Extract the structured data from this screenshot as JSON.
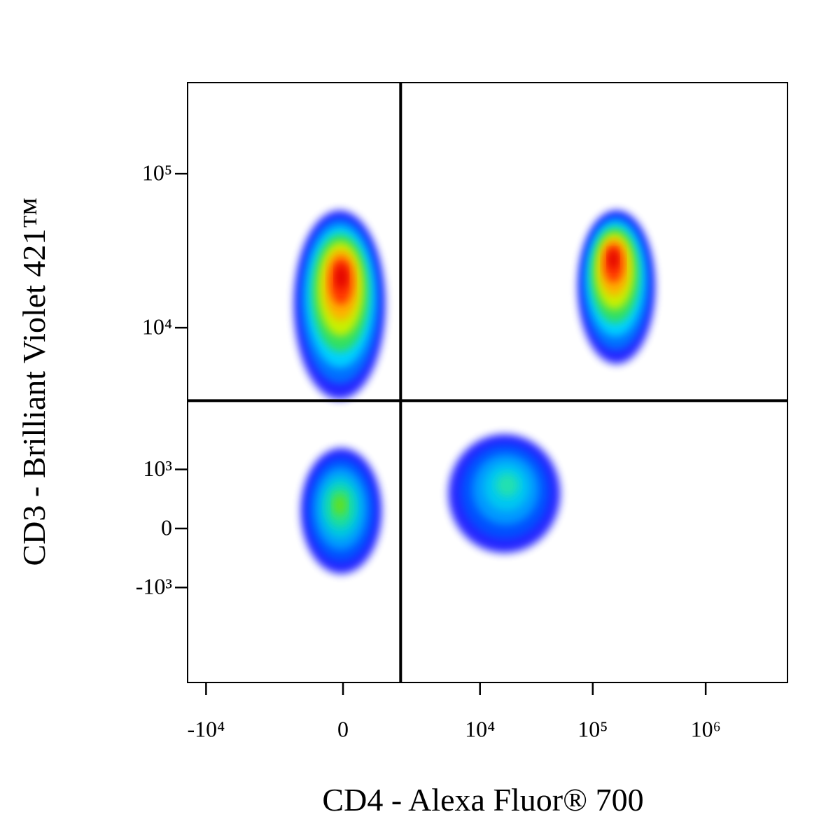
{
  "chart_data": {
    "type": "density",
    "x_label": "CD4 - Alexa Fluor® 700",
    "y_label": "CD3 - Brilliant Violet 421™",
    "xscale": "arcsinh",
    "x_cofactor": 1230,
    "yscale": "arcsinh",
    "y_cofactor": 1000,
    "xlim": [
      -14600,
      5300000
    ],
    "ylim": [
      -4940,
      390000
    ],
    "xticks": [
      {
        "value": -10000,
        "label": "-10⁴"
      },
      0,
      {
        "value": 10000,
        "label": "10⁴"
      },
      {
        "value": 100000,
        "label": "10⁵"
      },
      {
        "value": 1000000,
        "label": "10⁶"
      }
    ],
    "yticks": [
      {
        "value": -1000,
        "label": "-10³"
      },
      0,
      {
        "value": 1000,
        "label": "10³"
      },
      {
        "value": 10000,
        "label": "10⁴"
      },
      {
        "value": 100000,
        "label": "10⁵"
      }
    ],
    "gates": {
      "x": 1800,
      "y": 3300
    },
    "populations": [
      {
        "x": -35,
        "y": 22600,
        "xrange": [
          -1445,
          1190
        ],
        "yrange": [
          3370,
          57800
        ],
        "colors": [
          "#0000ff",
          "#0070ff",
          "#00d0ff",
          "#30e060",
          "#c8f000",
          "#ffb000",
          "#ff3000",
          "#e00000"
        ]
      },
      {
        "x": 150000,
        "y": 29500,
        "xrange": [
          73900,
          356000
        ],
        "yrange": [
          5800,
          57800
        ],
        "colors": [
          "#0000ff",
          "#0070ff",
          "#00d0ff",
          "#30e060",
          "#c8f000",
          "#ffb000",
          "#ff3000",
          "#e00000"
        ]
      },
      {
        "x": 17700,
        "y": 730,
        "xrange": [
          5200,
          51500
        ],
        "yrange": [
          -374,
          1920
        ],
        "colors": [
          "#0000ff",
          "#0050ff",
          "#0098ff",
          "#00c8f0",
          "#20e0b0"
        ]
      },
      {
        "x": -88,
        "y": 374,
        "xrange": [
          -1190,
          1070
        ],
        "yrange": [
          -730,
          1510
        ],
        "colors": [
          "#0000ff",
          "#0050ff",
          "#0098ff",
          "#00c8e0",
          "#20e090",
          "#60e020"
        ]
      }
    ]
  }
}
